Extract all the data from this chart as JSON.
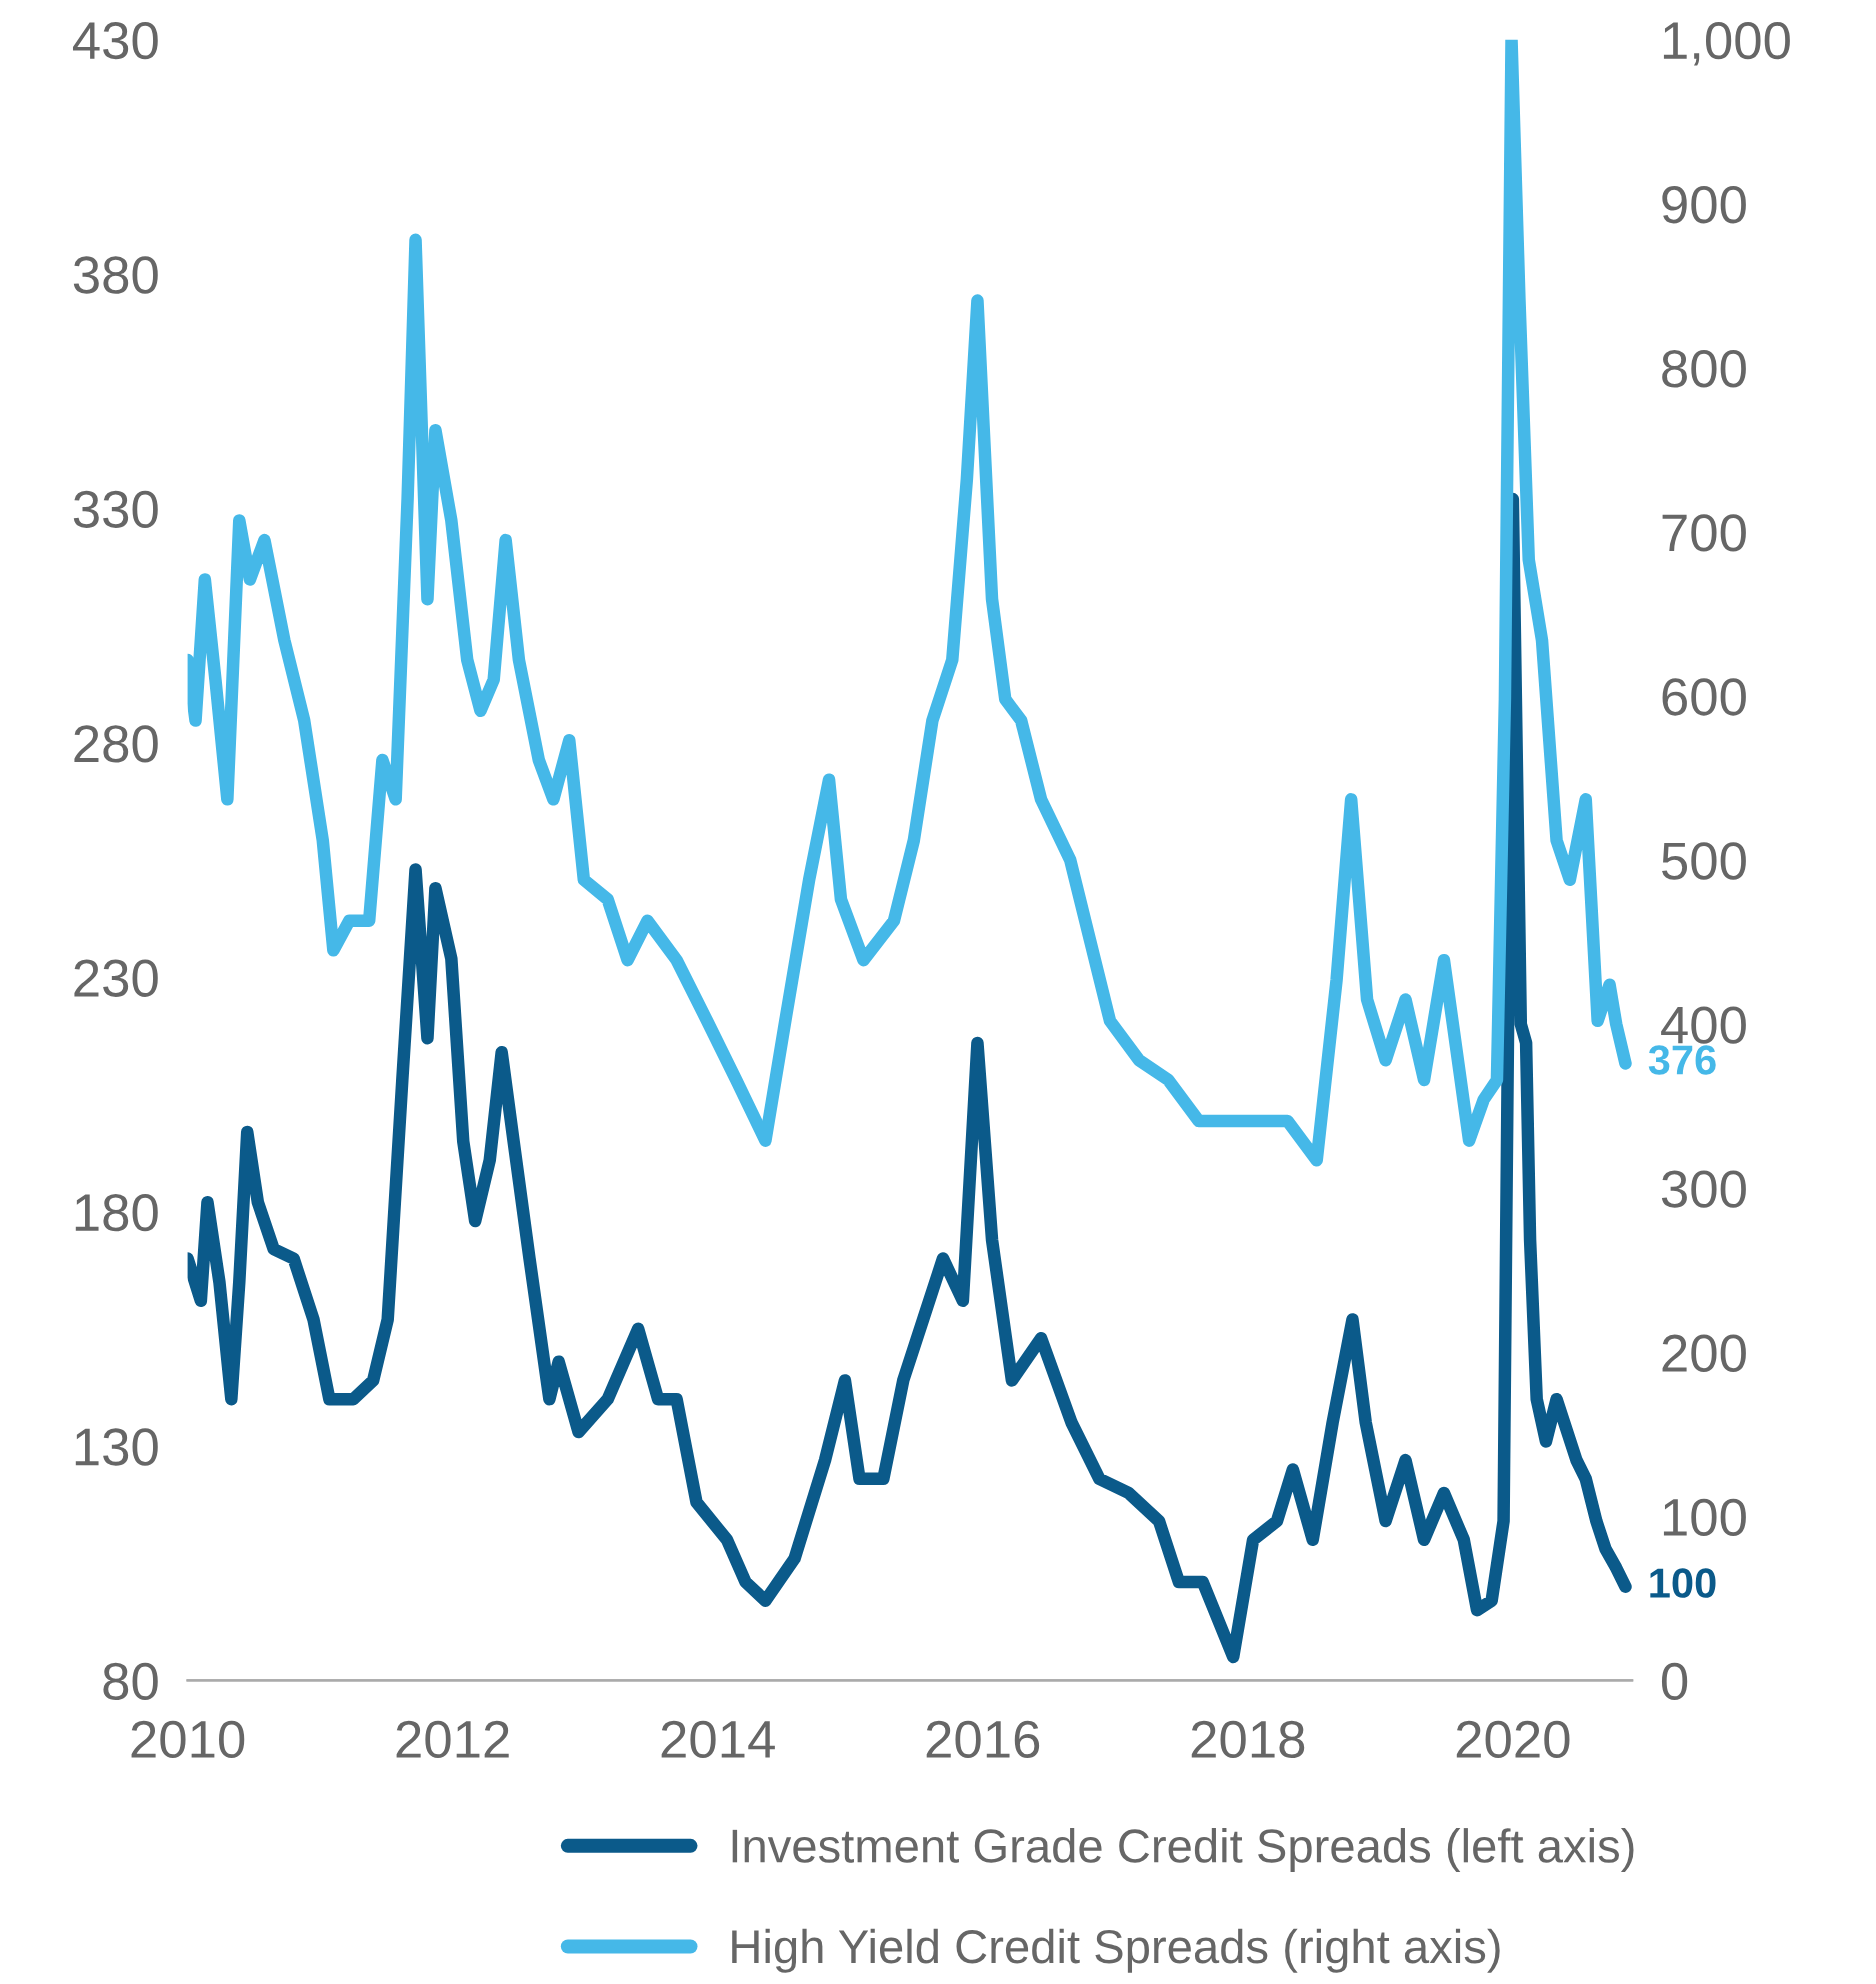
{
  "chart_data": {
    "type": "line",
    "xlim": [
      2010,
      2020.9
    ],
    "xticks": [
      2010,
      2012,
      2014,
      2016,
      2018,
      2020
    ],
    "ylim": [
      80,
      430
    ],
    "yticks": [
      80,
      130,
      180,
      230,
      280,
      330,
      380,
      430
    ],
    "y2lim": [
      0,
      1000
    ],
    "y2ticks": [
      0,
      100,
      200,
      300,
      400,
      500,
      600,
      700,
      800,
      900,
      {
        "value": 1000,
        "label": "1,000"
      }
    ],
    "grid": false,
    "legend": "bottom",
    "marker": "none",
    "line_style": "solid",
    "series": [
      {
        "name": "Investment Grade Credit Spreads (left axis)",
        "color": "#0b5a8a",
        "axis": "y",
        "x": [
          2010.0,
          2010.1,
          2010.15,
          2010.24,
          2010.33,
          2010.39,
          2010.45,
          2010.53,
          2010.65,
          2010.8,
          2010.95,
          2011.07,
          2011.25,
          2011.4,
          2011.51,
          2011.62,
          2011.72,
          2011.81,
          2011.87,
          2011.99,
          2012.08,
          2012.17,
          2012.28,
          2012.37,
          2012.46,
          2012.58,
          2012.73,
          2012.8,
          2012.95,
          2013.17,
          2013.4,
          2013.55,
          2013.69,
          2013.84,
          2014.07,
          2014.21,
          2014.36,
          2014.58,
          2014.81,
          2014.96,
          2015.07,
          2015.25,
          2015.4,
          2015.55,
          2015.7,
          2015.85,
          2015.96,
          2016.07,
          2016.22,
          2016.44,
          2016.67,
          2016.88,
          2017.1,
          2017.33,
          2017.48,
          2017.66,
          2017.89,
          2018.04,
          2018.22,
          2018.34,
          2018.49,
          2018.64,
          2018.79,
          2018.89,
          2019.04,
          2019.19,
          2019.33,
          2019.48,
          2019.63,
          2019.73,
          2019.84,
          2019.93,
          2020.0,
          2020.06,
          2020.1,
          2020.13,
          2020.18,
          2020.25,
          2020.33,
          2020.48,
          2020.55,
          2020.63,
          2020.7,
          2020.78,
          2020.85
        ],
        "values": [
          170,
          161,
          182,
          165,
          140,
          165,
          197,
          182,
          172,
          170,
          157,
          140,
          140,
          144,
          157,
          208,
          253,
          217,
          249,
          234,
          195,
          178,
          191,
          214,
          195,
          170,
          140,
          148,
          133,
          140,
          155,
          140,
          140,
          118,
          110,
          101,
          97,
          106,
          127,
          144,
          123,
          123,
          144,
          157,
          170,
          161,
          216,
          174,
          144,
          153,
          135,
          123,
          120,
          114,
          101,
          101,
          85,
          110,
          114,
          125,
          110,
          135,
          157,
          135,
          114,
          127,
          110,
          120,
          110,
          95,
          97,
          114,
          332,
          220,
          216,
          174,
          140,
          131,
          140,
          127,
          123,
          114,
          108,
          104,
          100
        ],
        "value_labels": [
          null,
          null,
          null,
          null,
          null,
          null,
          null,
          null,
          null,
          null,
          null,
          null,
          null,
          null,
          null,
          null,
          null,
          null,
          null,
          null,
          null,
          null,
          null,
          null,
          null,
          null,
          null,
          null,
          null,
          null,
          null,
          null,
          null,
          null,
          null,
          null,
          null,
          null,
          null,
          null,
          null,
          null,
          null,
          null,
          null,
          null,
          null,
          null,
          null,
          null,
          null,
          null,
          null,
          null,
          null,
          null,
          null,
          null,
          null,
          null,
          null,
          null,
          null,
          null,
          null,
          null,
          null,
          null,
          null,
          null,
          null,
          null,
          null,
          null,
          null,
          null,
          null,
          null,
          null,
          null,
          null,
          null,
          null,
          null,
          "100"
        ]
      },
      {
        "name": "High Yield Credit Spreads (right axis)",
        "color": "#45b8e8",
        "axis": "y2",
        "x": [
          2010.0,
          2010.06,
          2010.13,
          2010.21,
          2010.3,
          2010.39,
          2010.47,
          2010.58,
          2010.73,
          2010.88,
          2011.02,
          2011.1,
          2011.22,
          2011.37,
          2011.47,
          2011.57,
          2011.66,
          2011.72,
          2011.81,
          2011.87,
          2011.99,
          2012.11,
          2012.21,
          2012.31,
          2012.4,
          2012.5,
          2012.65,
          2012.76,
          2012.88,
          2012.99,
          2013.17,
          2013.32,
          2013.47,
          2013.69,
          2013.92,
          2014.14,
          2014.36,
          2014.51,
          2014.69,
          2014.84,
          2014.93,
          2015.1,
          2015.33,
          2015.48,
          2015.62,
          2015.77,
          2015.88,
          2015.96,
          2016.07,
          2016.17,
          2016.29,
          2016.44,
          2016.66,
          2016.81,
          2016.96,
          2017.18,
          2017.4,
          2017.63,
          2017.85,
          2018.07,
          2018.3,
          2018.52,
          2018.67,
          2018.78,
          2018.9,
          2019.04,
          2019.19,
          2019.33,
          2019.48,
          2019.67,
          2019.78,
          2019.88,
          2019.94,
          2019.99,
          2020.05,
          2020.12,
          2020.22,
          2020.33,
          2020.43,
          2020.55,
          2020.64,
          2020.73,
          2020.78,
          2020.85
        ],
        "values": [
          622,
          585,
          671,
          610,
          537,
          707,
          671,
          695,
          634,
          585,
          512,
          445,
          463,
          463,
          561,
          537,
          720,
          878,
          659,
          762,
          707,
          622,
          591,
          610,
          695,
          622,
          561,
          537,
          573,
          488,
          476,
          439,
          463,
          439,
          402,
          366,
          329,
          402,
          488,
          549,
          476,
          439,
          463,
          512,
          585,
          622,
          732,
          841,
          659,
          598,
          585,
          537,
          500,
          451,
          402,
          378,
          366,
          341,
          341,
          341,
          341,
          317,
          427,
          537,
          415,
          378,
          415,
          366,
          439,
          329,
          354,
          366,
          598,
          1000,
          841,
          683,
          634,
          512,
          488,
          537,
          402,
          424,
          400,
          376
        ],
        "value_labels": [
          null,
          null,
          null,
          null,
          null,
          null,
          null,
          null,
          null,
          null,
          null,
          null,
          null,
          null,
          null,
          null,
          null,
          null,
          null,
          null,
          null,
          null,
          null,
          null,
          null,
          null,
          null,
          null,
          null,
          null,
          null,
          null,
          null,
          null,
          null,
          null,
          null,
          null,
          null,
          null,
          null,
          null,
          null,
          null,
          null,
          null,
          null,
          null,
          null,
          null,
          null,
          null,
          null,
          null,
          null,
          null,
          null,
          null,
          null,
          null,
          null,
          null,
          null,
          null,
          null,
          null,
          null,
          null,
          null,
          null,
          null,
          null,
          null,
          null,
          null,
          null,
          null,
          null,
          null,
          null,
          null,
          null,
          null,
          "376"
        ]
      }
    ]
  }
}
